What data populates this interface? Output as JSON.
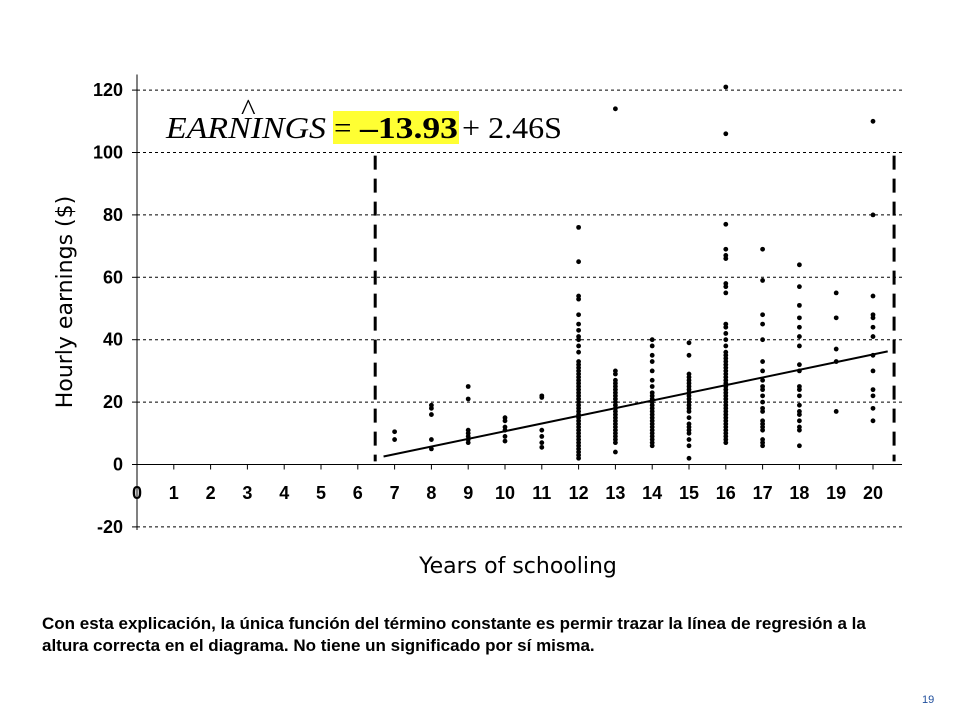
{
  "chart_data": {
    "type": "scatter",
    "xlabel": "Years of schooling",
    "ylabel": "Hourly earnings ($)",
    "xticks": [
      "0",
      "1",
      "2",
      "3",
      "4",
      "5",
      "6",
      "7",
      "8",
      "9",
      "10",
      "11",
      "12",
      "13",
      "14",
      "15",
      "16",
      "17",
      "18",
      "19",
      "20"
    ],
    "yticks": [
      "-20",
      "0",
      "20",
      "40",
      "60",
      "80",
      "100",
      "120"
    ],
    "xlim": [
      0,
      20.6
    ],
    "ylim": [
      -20,
      125
    ],
    "grid": "horizontal dashed",
    "equation": {
      "lhs": "EARNINGS",
      "hat": "^",
      "equals": "=",
      "intercept": "–13.93",
      "rest": "+ 2.46S"
    },
    "regression": {
      "intercept": -13.93,
      "slope": 2.46,
      "x_range": [
        6.7,
        20.4
      ]
    },
    "range_markers_x": [
      6.5,
      20.6
    ],
    "points": [
      [
        7,
        8
      ],
      [
        7,
        10.5
      ],
      [
        8,
        5
      ],
      [
        8,
        8
      ],
      [
        8,
        16
      ],
      [
        8,
        18
      ],
      [
        8,
        19
      ],
      [
        9,
        7
      ],
      [
        9,
        8
      ],
      [
        9,
        9
      ],
      [
        9,
        10
      ],
      [
        9,
        11
      ],
      [
        9,
        21
      ],
      [
        9,
        25
      ],
      [
        10,
        7.5
      ],
      [
        10,
        9
      ],
      [
        10,
        11
      ],
      [
        10,
        12
      ],
      [
        10,
        14
      ],
      [
        10,
        15
      ],
      [
        11,
        5.5
      ],
      [
        11,
        7
      ],
      [
        11,
        9
      ],
      [
        11,
        11
      ],
      [
        11,
        21.5
      ],
      [
        11,
        22
      ],
      [
        12,
        2
      ],
      [
        12,
        3
      ],
      [
        12,
        4
      ],
      [
        12,
        5
      ],
      [
        12,
        6
      ],
      [
        12,
        7
      ],
      [
        12,
        8
      ],
      [
        12,
        9
      ],
      [
        12,
        10
      ],
      [
        12,
        11
      ],
      [
        12,
        12
      ],
      [
        12,
        13
      ],
      [
        12,
        14
      ],
      [
        12,
        15
      ],
      [
        12,
        16
      ],
      [
        12,
        17
      ],
      [
        12,
        18
      ],
      [
        12,
        19
      ],
      [
        12,
        20
      ],
      [
        12,
        21
      ],
      [
        12,
        22
      ],
      [
        12,
        23
      ],
      [
        12,
        24
      ],
      [
        12,
        25
      ],
      [
        12,
        26
      ],
      [
        12,
        27
      ],
      [
        12,
        28
      ],
      [
        12,
        29
      ],
      [
        12,
        30
      ],
      [
        12,
        31
      ],
      [
        12,
        32
      ],
      [
        12,
        33
      ],
      [
        12,
        36
      ],
      [
        12,
        38
      ],
      [
        12,
        40
      ],
      [
        12,
        41
      ],
      [
        12,
        43
      ],
      [
        12,
        45
      ],
      [
        12,
        48
      ],
      [
        12,
        53
      ],
      [
        12,
        54
      ],
      [
        12,
        65
      ],
      [
        12,
        76
      ],
      [
        13,
        4
      ],
      [
        13,
        7
      ],
      [
        13,
        8
      ],
      [
        13,
        9
      ],
      [
        13,
        10
      ],
      [
        13,
        11
      ],
      [
        13,
        12
      ],
      [
        13,
        13
      ],
      [
        13,
        14
      ],
      [
        13,
        15
      ],
      [
        13,
        16
      ],
      [
        13,
        17
      ],
      [
        13,
        18
      ],
      [
        13,
        19
      ],
      [
        13,
        20
      ],
      [
        13,
        21
      ],
      [
        13,
        22
      ],
      [
        13,
        23
      ],
      [
        13,
        24
      ],
      [
        13,
        25
      ],
      [
        13,
        26
      ],
      [
        13,
        27
      ],
      [
        13,
        29
      ],
      [
        13,
        30
      ],
      [
        13,
        114
      ],
      [
        14,
        6
      ],
      [
        14,
        7
      ],
      [
        14,
        8
      ],
      [
        14,
        9
      ],
      [
        14,
        10
      ],
      [
        14,
        11
      ],
      [
        14,
        12
      ],
      [
        14,
        13
      ],
      [
        14,
        14
      ],
      [
        14,
        15
      ],
      [
        14,
        16
      ],
      [
        14,
        17
      ],
      [
        14,
        18
      ],
      [
        14,
        19
      ],
      [
        14,
        20
      ],
      [
        14,
        21
      ],
      [
        14,
        22
      ],
      [
        14,
        23
      ],
      [
        14,
        25
      ],
      [
        14,
        27
      ],
      [
        14,
        30
      ],
      [
        14,
        33
      ],
      [
        14,
        35
      ],
      [
        14,
        38
      ],
      [
        14,
        40
      ],
      [
        15,
        2
      ],
      [
        15,
        6
      ],
      [
        15,
        8
      ],
      [
        15,
        10
      ],
      [
        15,
        11
      ],
      [
        15,
        12
      ],
      [
        15,
        13
      ],
      [
        15,
        15
      ],
      [
        15,
        17
      ],
      [
        15,
        18
      ],
      [
        15,
        19
      ],
      [
        15,
        20
      ],
      [
        15,
        21
      ],
      [
        15,
        22
      ],
      [
        15,
        23
      ],
      [
        15,
        24
      ],
      [
        15,
        25
      ],
      [
        15,
        26
      ],
      [
        15,
        27
      ],
      [
        15,
        28
      ],
      [
        15,
        29
      ],
      [
        15,
        35
      ],
      [
        15,
        39
      ],
      [
        16,
        7
      ],
      [
        16,
        8
      ],
      [
        16,
        9
      ],
      [
        16,
        10
      ],
      [
        16,
        11
      ],
      [
        16,
        12
      ],
      [
        16,
        13
      ],
      [
        16,
        14
      ],
      [
        16,
        15
      ],
      [
        16,
        16
      ],
      [
        16,
        17
      ],
      [
        16,
        18
      ],
      [
        16,
        19
      ],
      [
        16,
        20
      ],
      [
        16,
        21
      ],
      [
        16,
        22
      ],
      [
        16,
        23
      ],
      [
        16,
        24
      ],
      [
        16,
        25
      ],
      [
        16,
        26
      ],
      [
        16,
        27
      ],
      [
        16,
        28
      ],
      [
        16,
        29
      ],
      [
        16,
        30
      ],
      [
        16,
        31
      ],
      [
        16,
        32
      ],
      [
        16,
        33
      ],
      [
        16,
        34
      ],
      [
        16,
        35
      ],
      [
        16,
        36
      ],
      [
        16,
        38
      ],
      [
        16,
        40
      ],
      [
        16,
        42
      ],
      [
        16,
        44
      ],
      [
        16,
        45
      ],
      [
        16,
        55
      ],
      [
        16,
        57
      ],
      [
        16,
        58
      ],
      [
        16,
        66
      ],
      [
        16,
        67
      ],
      [
        16,
        69
      ],
      [
        16,
        77
      ],
      [
        16,
        106
      ],
      [
        16,
        121
      ],
      [
        17,
        6
      ],
      [
        17,
        7
      ],
      [
        17,
        8
      ],
      [
        17,
        11
      ],
      [
        17,
        12
      ],
      [
        17,
        13
      ],
      [
        17,
        14
      ],
      [
        17,
        17
      ],
      [
        17,
        18
      ],
      [
        17,
        20
      ],
      [
        17,
        22
      ],
      [
        17,
        24
      ],
      [
        17,
        25
      ],
      [
        17,
        27
      ],
      [
        17,
        30
      ],
      [
        17,
        33
      ],
      [
        17,
        40
      ],
      [
        17,
        45
      ],
      [
        17,
        48
      ],
      [
        17,
        59
      ],
      [
        17,
        69
      ],
      [
        18,
        6
      ],
      [
        18,
        11
      ],
      [
        18,
        12
      ],
      [
        18,
        14
      ],
      [
        18,
        16
      ],
      [
        18,
        17
      ],
      [
        18,
        19
      ],
      [
        18,
        22
      ],
      [
        18,
        24
      ],
      [
        18,
        25
      ],
      [
        18,
        30
      ],
      [
        18,
        32
      ],
      [
        18,
        38
      ],
      [
        18,
        41
      ],
      [
        18,
        44
      ],
      [
        18,
        47
      ],
      [
        18,
        51
      ],
      [
        18,
        57
      ],
      [
        18,
        64
      ],
      [
        19,
        17
      ],
      [
        19,
        33
      ],
      [
        19,
        37
      ],
      [
        19,
        47
      ],
      [
        19,
        55
      ],
      [
        20,
        14
      ],
      [
        20,
        18
      ],
      [
        20,
        22
      ],
      [
        20,
        24
      ],
      [
        20,
        30
      ],
      [
        20,
        35
      ],
      [
        20,
        41
      ],
      [
        20,
        44
      ],
      [
        20,
        47
      ],
      [
        20,
        48
      ],
      [
        20,
        54
      ],
      [
        20,
        80
      ],
      [
        20,
        110
      ]
    ]
  },
  "caption": "Con esta explicación, la única función del término constante es permir trazar la línea de regresión a la altura correcta en el diagrama. No tiene un significado por sí misma.",
  "page_number": "19",
  "colors": {
    "highlight": "#ffff33",
    "page_number": "#1f4e9c",
    "ink": "#000000"
  }
}
